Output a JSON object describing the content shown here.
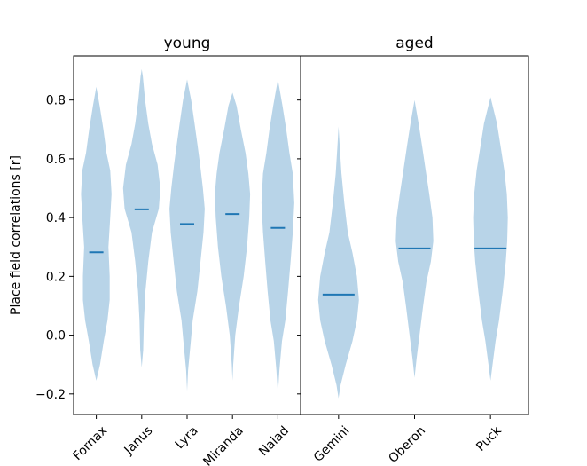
{
  "chart_data": {
    "type": "violin",
    "ylabel": "Place field correlations [r]",
    "ylim": [
      -0.27,
      0.95
    ],
    "yticks": [
      -0.2,
      0.0,
      0.2,
      0.4,
      0.6,
      0.8
    ],
    "ytick_labels": [
      "−0.2",
      "0.0",
      "0.2",
      "0.4",
      "0.6",
      "0.8"
    ],
    "body_color": "#b8d4e8",
    "median_color": "#1f77b4",
    "panels": [
      {
        "title": "young",
        "groups": [
          {
            "name": "Fornax",
            "min": -0.155,
            "max": 0.845,
            "median": 0.282,
            "profile": [
              [
                -0.155,
                0.0
              ],
              [
                -0.1,
                0.2
              ],
              [
                -0.02,
                0.4
              ],
              [
                0.05,
                0.6
              ],
              [
                0.12,
                0.72
              ],
              [
                0.2,
                0.72
              ],
              [
                0.3,
                0.65
              ],
              [
                0.4,
                0.75
              ],
              [
                0.48,
                0.82
              ],
              [
                0.56,
                0.75
              ],
              [
                0.62,
                0.55
              ],
              [
                0.7,
                0.38
              ],
              [
                0.78,
                0.18
              ],
              [
                0.845,
                0.0
              ]
            ]
          },
          {
            "name": "Janus",
            "min": -0.11,
            "max": 0.905,
            "median": 0.428,
            "profile": [
              [
                -0.11,
                0.0
              ],
              [
                -0.05,
                0.08
              ],
              [
                0.05,
                0.12
              ],
              [
                0.15,
                0.2
              ],
              [
                0.25,
                0.35
              ],
              [
                0.35,
                0.55
              ],
              [
                0.43,
                0.92
              ],
              [
                0.5,
                1.0
              ],
              [
                0.58,
                0.85
              ],
              [
                0.65,
                0.55
              ],
              [
                0.72,
                0.35
              ],
              [
                0.8,
                0.18
              ],
              [
                0.88,
                0.06
              ],
              [
                0.905,
                0.0
              ]
            ]
          },
          {
            "name": "Lyra",
            "min": -0.19,
            "max": 0.87,
            "median": 0.378,
            "profile": [
              [
                -0.19,
                0.0
              ],
              [
                -0.12,
                0.05
              ],
              [
                -0.02,
                0.2
              ],
              [
                0.05,
                0.3
              ],
              [
                0.15,
                0.55
              ],
              [
                0.25,
                0.72
              ],
              [
                0.35,
                0.88
              ],
              [
                0.43,
                0.95
              ],
              [
                0.5,
                0.85
              ],
              [
                0.58,
                0.7
              ],
              [
                0.65,
                0.55
              ],
              [
                0.72,
                0.4
              ],
              [
                0.8,
                0.22
              ],
              [
                0.87,
                0.0
              ]
            ]
          },
          {
            "name": "Miranda",
            "min": -0.155,
            "max": 0.825,
            "median": 0.412,
            "profile": [
              [
                -0.155,
                0.0
              ],
              [
                -0.1,
                0.04
              ],
              [
                0.0,
                0.15
              ],
              [
                0.1,
                0.35
              ],
              [
                0.2,
                0.6
              ],
              [
                0.3,
                0.78
              ],
              [
                0.4,
                0.9
              ],
              [
                0.48,
                0.95
              ],
              [
                0.55,
                0.85
              ],
              [
                0.62,
                0.7
              ],
              [
                0.7,
                0.45
              ],
              [
                0.78,
                0.22
              ],
              [
                0.825,
                0.0
              ]
            ]
          },
          {
            "name": "Naiad",
            "min": -0.2,
            "max": 0.87,
            "median": 0.365,
            "profile": [
              [
                -0.2,
                0.0
              ],
              [
                -0.12,
                0.08
              ],
              [
                -0.02,
                0.22
              ],
              [
                0.05,
                0.4
              ],
              [
                0.15,
                0.55
              ],
              [
                0.25,
                0.68
              ],
              [
                0.35,
                0.8
              ],
              [
                0.45,
                0.88
              ],
              [
                0.55,
                0.8
              ],
              [
                0.62,
                0.62
              ],
              [
                0.7,
                0.45
              ],
              [
                0.78,
                0.25
              ],
              [
                0.87,
                0.0
              ]
            ]
          }
        ]
      },
      {
        "title": "aged",
        "groups": [
          {
            "name": "Gemini",
            "min": -0.215,
            "max": 0.71,
            "median": 0.138,
            "profile": [
              [
                -0.215,
                0.0
              ],
              [
                -0.17,
                0.1
              ],
              [
                -0.1,
                0.35
              ],
              [
                -0.02,
                0.68
              ],
              [
                0.05,
                0.9
              ],
              [
                0.12,
                1.0
              ],
              [
                0.2,
                0.9
              ],
              [
                0.28,
                0.68
              ],
              [
                0.35,
                0.45
              ],
              [
                0.45,
                0.28
              ],
              [
                0.55,
                0.14
              ],
              [
                0.65,
                0.05
              ],
              [
                0.71,
                0.0
              ]
            ]
          },
          {
            "name": "Oberon",
            "min": -0.145,
            "max": 0.8,
            "median": 0.295,
            "profile": [
              [
                -0.145,
                0.0
              ],
              [
                -0.08,
                0.1
              ],
              [
                0.02,
                0.28
              ],
              [
                0.1,
                0.42
              ],
              [
                0.18,
                0.58
              ],
              [
                0.25,
                0.8
              ],
              [
                0.32,
                0.92
              ],
              [
                0.4,
                0.88
              ],
              [
                0.48,
                0.72
              ],
              [
                0.56,
                0.55
              ],
              [
                0.64,
                0.38
              ],
              [
                0.72,
                0.2
              ],
              [
                0.8,
                0.0
              ]
            ]
          },
          {
            "name": "Puck",
            "min": -0.155,
            "max": 0.81,
            "median": 0.295,
            "profile": [
              [
                -0.155,
                0.0
              ],
              [
                -0.1,
                0.1
              ],
              [
                -0.02,
                0.25
              ],
              [
                0.05,
                0.42
              ],
              [
                0.15,
                0.6
              ],
              [
                0.25,
                0.75
              ],
              [
                0.32,
                0.82
              ],
              [
                0.4,
                0.85
              ],
              [
                0.48,
                0.8
              ],
              [
                0.56,
                0.68
              ],
              [
                0.64,
                0.5
              ],
              [
                0.72,
                0.32
              ],
              [
                0.81,
                0.0
              ]
            ]
          }
        ]
      }
    ]
  }
}
